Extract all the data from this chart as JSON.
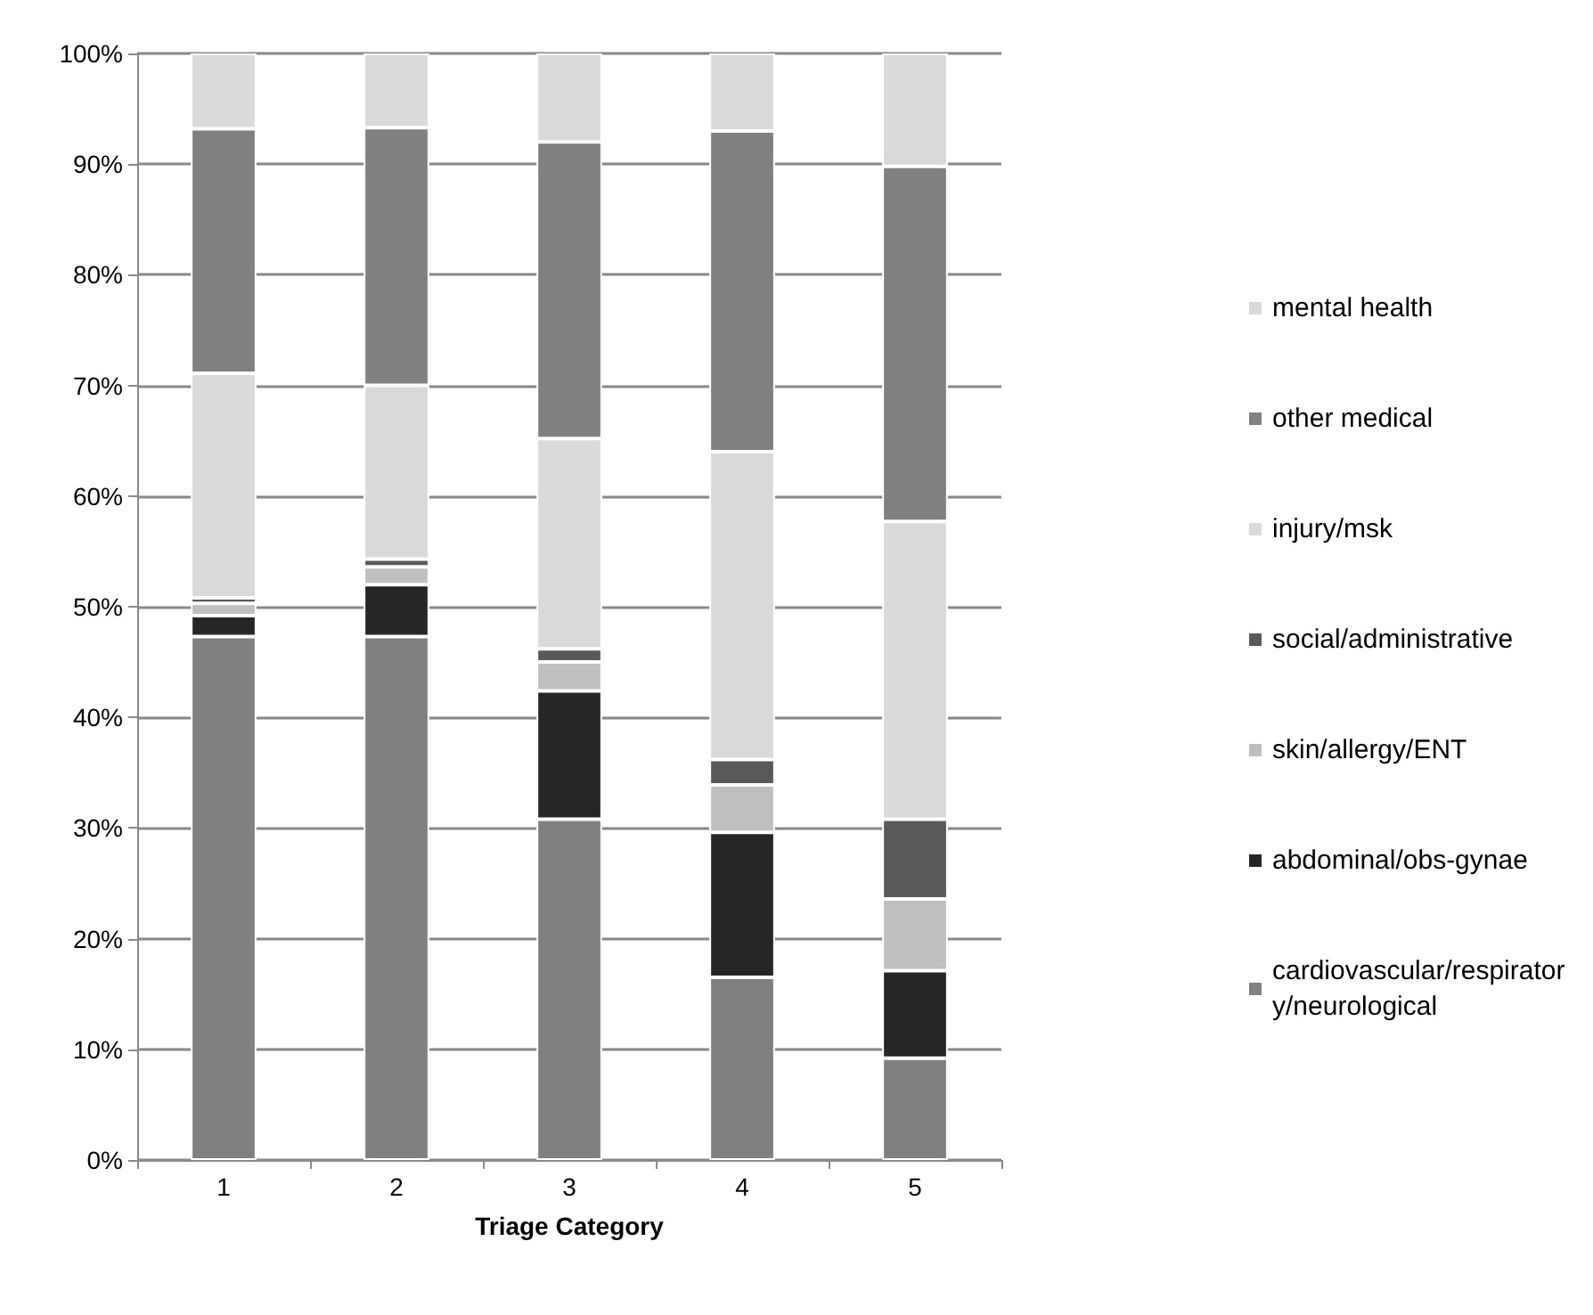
{
  "chart_data": {
    "type": "bar",
    "stacked": true,
    "xlabel": "Triage Category",
    "categories": [
      "1",
      "2",
      "3",
      "4",
      "5"
    ],
    "series": [
      {
        "name": "cardiovascular/respiratory/neurological",
        "color": "#808080",
        "values": [
          47.3,
          47.3,
          30.8,
          16.5,
          9.2
        ]
      },
      {
        "name": "abdominal/obs-gynae",
        "color": "#262626",
        "values": [
          1.9,
          4.7,
          11.6,
          13.1,
          7.9
        ]
      },
      {
        "name": "skin/allergy/ENT",
        "color": "#bfbfbf",
        "values": [
          1.1,
          1.6,
          2.6,
          4.3,
          6.5
        ]
      },
      {
        "name": "social/administrative",
        "color": "#595959",
        "values": [
          0.5,
          0.7,
          1.2,
          2.3,
          7.2
        ]
      },
      {
        "name": "injury/msk",
        "color": "#d9d9d9",
        "values": [
          20.3,
          15.7,
          19.0,
          27.8,
          26.9
        ]
      },
      {
        "name": "other medical",
        "color": "#808080",
        "values": [
          22.1,
          23.3,
          26.8,
          29.0,
          32.1
        ]
      },
      {
        "name": "mental health",
        "color": "#d9d9d9",
        "values": [
          6.8,
          6.7,
          8.0,
          7.0,
          10.2
        ]
      }
    ],
    "ylim": [
      0,
      100
    ],
    "yticks": [
      {
        "value": 0,
        "label": "0%"
      },
      {
        "value": 10,
        "label": "10%"
      },
      {
        "value": 20,
        "label": "20%"
      },
      {
        "value": 30,
        "label": "30%"
      },
      {
        "value": 40,
        "label": "40%"
      },
      {
        "value": 50,
        "label": "50%"
      },
      {
        "value": 60,
        "label": "60%"
      },
      {
        "value": 70,
        "label": "70%"
      },
      {
        "value": 80,
        "label": "80%"
      },
      {
        "value": 90,
        "label": "90%"
      },
      {
        "value": 100,
        "label": "100%"
      }
    ],
    "grid": "y",
    "legend": "right"
  }
}
